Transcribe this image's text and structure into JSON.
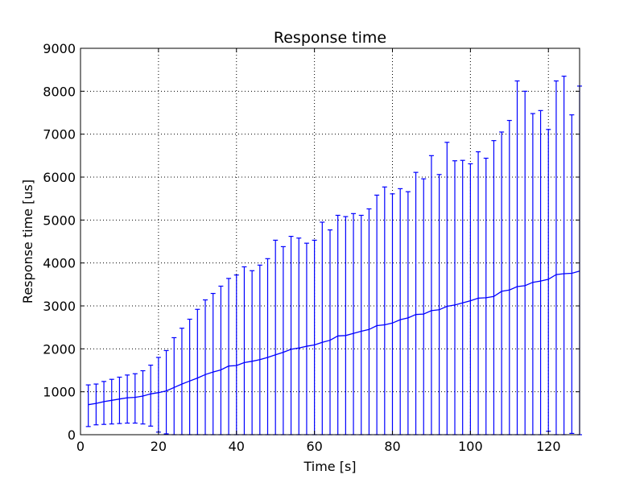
{
  "chart_data": {
    "type": "line",
    "title": "Response time",
    "xlabel": "Time [s]",
    "ylabel": "Response time [us]",
    "xlim": [
      0,
      128
    ],
    "ylim": [
      0,
      9000
    ],
    "xticks": [
      0,
      20,
      40,
      60,
      80,
      100,
      120
    ],
    "yticks": [
      0,
      1000,
      2000,
      3000,
      4000,
      5000,
      6000,
      7000,
      8000,
      9000
    ],
    "grid": true,
    "series": [
      {
        "color": "#0000ff",
        "x": [
          2,
          4,
          6,
          8,
          10,
          12,
          14,
          16,
          18,
          20,
          22,
          24,
          26,
          28,
          30,
          32,
          34,
          36,
          38,
          40,
          42,
          44,
          46,
          48,
          50,
          52,
          54,
          56,
          58,
          60,
          62,
          64,
          66,
          68,
          70,
          72,
          74,
          76,
          78,
          80,
          82,
          84,
          86,
          88,
          90,
          92,
          94,
          96,
          98,
          100,
          102,
          104,
          106,
          108,
          110,
          112,
          114,
          116,
          118,
          120,
          122,
          124,
          126,
          128
        ],
        "y": [
          700,
          730,
          770,
          800,
          830,
          860,
          870,
          900,
          950,
          980,
          1020,
          1100,
          1180,
          1250,
          1320,
          1400,
          1460,
          1510,
          1600,
          1610,
          1680,
          1710,
          1750,
          1800,
          1860,
          1920,
          1990,
          2020,
          2060,
          2090,
          2150,
          2200,
          2300,
          2310,
          2360,
          2410,
          2450,
          2540,
          2560,
          2600,
          2680,
          2720,
          2800,
          2810,
          2890,
          2910,
          2990,
          3020,
          3070,
          3120,
          3180,
          3190,
          3220,
          3340,
          3370,
          3450,
          3470,
          3550,
          3580,
          3620,
          3730,
          3750,
          3760,
          3810
        ],
        "err_high": [
          1160,
          1180,
          1240,
          1290,
          1340,
          1390,
          1420,
          1490,
          1620,
          1800,
          1960,
          2260,
          2480,
          2690,
          2920,
          3140,
          3290,
          3460,
          3640,
          3720,
          3910,
          3820,
          3950,
          4100,
          4530,
          4380,
          4620,
          4580,
          4460,
          4530,
          4950,
          4770,
          5110,
          5080,
          5150,
          5110,
          5260,
          5580,
          5770,
          5610,
          5730,
          5660,
          6110,
          5960,
          6500,
          6060,
          6810,
          6380,
          6390,
          6310,
          6590,
          6440,
          6850,
          7050,
          7320,
          8240,
          8000,
          7480,
          7550,
          7110,
          8240,
          8350,
          7450,
          8120
        ],
        "err_low": [
          190,
          230,
          240,
          250,
          260,
          270,
          270,
          250,
          200,
          60,
          20,
          0,
          0,
          0,
          0,
          0,
          0,
          0,
          0,
          0,
          0,
          0,
          0,
          0,
          0,
          0,
          0,
          0,
          0,
          0,
          0,
          0,
          0,
          0,
          0,
          0,
          0,
          0,
          0,
          0,
          0,
          0,
          0,
          0,
          0,
          0,
          0,
          0,
          0,
          0,
          0,
          0,
          0,
          0,
          0,
          0,
          0,
          0,
          0,
          80,
          0,
          0,
          30,
          0
        ]
      }
    ]
  }
}
